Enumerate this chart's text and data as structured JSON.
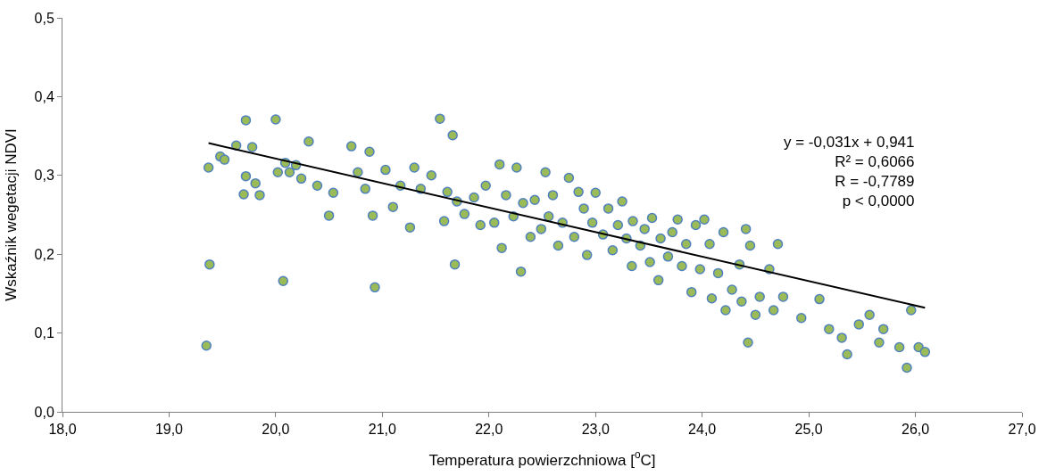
{
  "chart_data": {
    "type": "scatter",
    "xlabel": "Temperatura powierzchniowa [$^{o}$C]",
    "ylabel": "Wskaźnik wegetacji NDVI",
    "xlim": [
      18,
      27
    ],
    "xticks": [
      {
        "value": 18,
        "label": "18,0"
      },
      {
        "value": 19,
        "label": "19,0"
      },
      {
        "value": 20,
        "label": "20,0"
      },
      {
        "value": 21,
        "label": "21,0"
      },
      {
        "value": 22,
        "label": "22,0"
      },
      {
        "value": 23,
        "label": "23,0"
      },
      {
        "value": 24,
        "label": "24,0"
      },
      {
        "value": 25,
        "label": "25,0"
      },
      {
        "value": 26,
        "label": "26,0"
      },
      {
        "value": 27,
        "label": "27,0"
      }
    ],
    "ylim": [
      0,
      0.5
    ],
    "yticks": [
      {
        "value": 0,
        "label": "0,0"
      },
      {
        "value": 0.1,
        "label": "0,1"
      },
      {
        "value": 0.2,
        "label": "0,2"
      },
      {
        "value": 0.3,
        "label": "0,3"
      },
      {
        "value": 0.4,
        "label": "0,4"
      },
      {
        "value": 0.5,
        "label": "0,5"
      }
    ],
    "marker": "circle",
    "annotations": [
      "y = -0,031x + 0,941\nR² = 0,6066\nR = -0,7789\np < 0,0000"
    ],
    "series": [
      {
        "color": "#9bbb59",
        "x": [
          19.35,
          19.37,
          19.38,
          19.48,
          19.52,
          19.63,
          19.7,
          19.72,
          19.72,
          19.78,
          19.81,
          19.85,
          20.0,
          20.02,
          20.07,
          20.09,
          20.13,
          20.19,
          20.24,
          20.31,
          20.39,
          20.5,
          20.54,
          20.71,
          20.77,
          20.84,
          20.88,
          20.91,
          20.93,
          21.03,
          21.1,
          21.17,
          21.26,
          21.3,
          21.36,
          21.46,
          21.54,
          21.58,
          21.61,
          21.66,
          21.68,
          21.7,
          21.77,
          21.86,
          21.92,
          21.97,
          22.05,
          22.1,
          22.12,
          22.16,
          22.23,
          22.26,
          22.3,
          22.32,
          22.39,
          22.43,
          22.49,
          22.53,
          22.56,
          22.6,
          22.65,
          22.69,
          22.75,
          22.8,
          22.84,
          22.89,
          22.92,
          22.97,
          23.0,
          23.07,
          23.12,
          23.16,
          23.21,
          23.25,
          23.29,
          23.34,
          23.35,
          23.42,
          23.46,
          23.51,
          23.53,
          23.59,
          23.61,
          23.68,
          23.72,
          23.77,
          23.81,
          23.85,
          23.9,
          23.94,
          23.98,
          24.02,
          24.07,
          24.09,
          24.15,
          24.2,
          24.22,
          24.28,
          24.35,
          24.37,
          24.41,
          24.43,
          24.45,
          24.5,
          24.54,
          24.63,
          24.67,
          24.71,
          24.76,
          24.93,
          25.1,
          25.19,
          25.31,
          25.36,
          25.47,
          25.57,
          25.66,
          25.7,
          25.85,
          25.92,
          25.96,
          26.03,
          26.09
        ],
        "values": [
          0.084,
          0.31,
          0.187,
          0.324,
          0.32,
          0.338,
          0.276,
          0.299,
          0.37,
          0.336,
          0.29,
          0.275,
          0.371,
          0.304,
          0.166,
          0.316,
          0.304,
          0.313,
          0.296,
          0.343,
          0.287,
          0.249,
          0.278,
          0.337,
          0.304,
          0.283,
          0.33,
          0.249,
          0.158,
          0.307,
          0.26,
          0.287,
          0.234,
          0.31,
          0.283,
          0.3,
          0.372,
          0.242,
          0.279,
          0.351,
          0.187,
          0.267,
          0.251,
          0.272,
          0.237,
          0.287,
          0.24,
          0.314,
          0.208,
          0.275,
          0.248,
          0.31,
          0.178,
          0.265,
          0.222,
          0.269,
          0.232,
          0.304,
          0.248,
          0.275,
          0.211,
          0.24,
          0.297,
          0.222,
          0.279,
          0.258,
          0.199,
          0.24,
          0.278,
          0.225,
          0.258,
          0.205,
          0.237,
          0.267,
          0.22,
          0.185,
          0.242,
          0.211,
          0.232,
          0.19,
          0.246,
          0.167,
          0.22,
          0.197,
          0.228,
          0.244,
          0.185,
          0.213,
          0.152,
          0.237,
          0.181,
          0.244,
          0.213,
          0.144,
          0.176,
          0.228,
          0.129,
          0.155,
          0.187,
          0.14,
          0.232,
          0.088,
          0.211,
          0.123,
          0.146,
          0.181,
          0.129,
          0.213,
          0.146,
          0.119,
          0.143,
          0.105,
          0.094,
          0.073,
          0.111,
          0.123,
          0.088,
          0.105,
          0.082,
          0.056,
          0.129,
          0.082,
          0.076
        ]
      },
      {
        "type": "line",
        "color": "#000000",
        "marker": "none",
        "x": [
          19.37,
          26.09
        ],
        "values": [
          0.341,
          0.132
        ]
      }
    ]
  }
}
